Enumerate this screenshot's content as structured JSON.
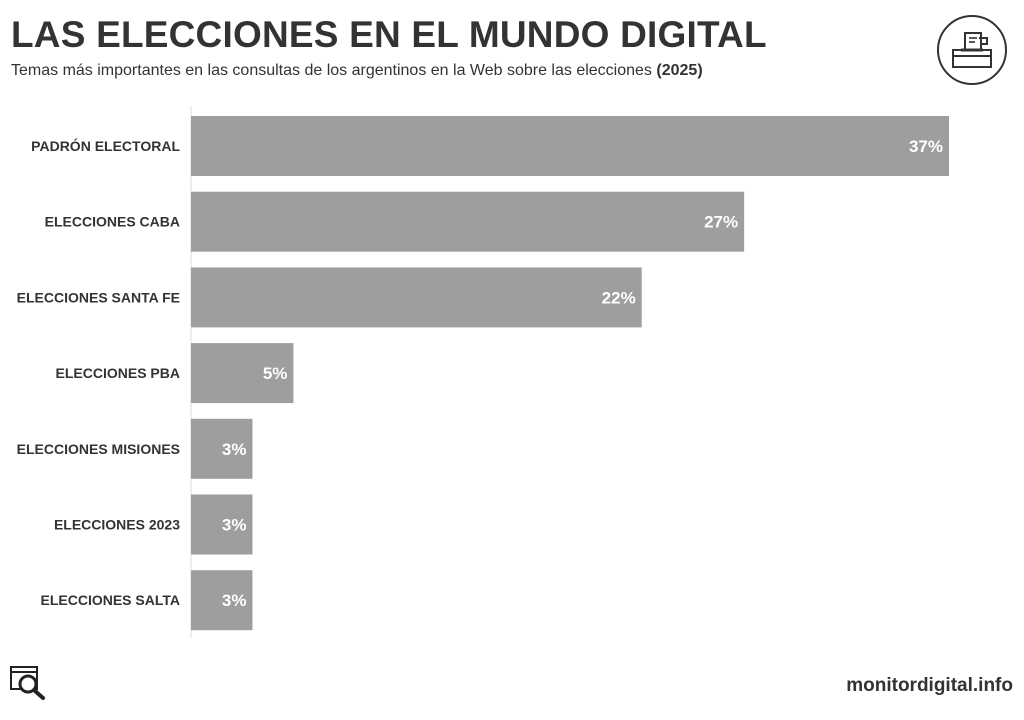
{
  "header": {
    "title": "LAS ELECCIONES EN EL MUNDO DIGITAL",
    "subtitle": "Temas más importantes en las consultas de los argentinos en la Web sobre las elecciones",
    "subtitle_year": "(2025)",
    "badge_icon": "ballot-box-icon"
  },
  "footer": {
    "icon": "search-magnifier-icon",
    "site": "monitordigital.info"
  },
  "colors": {
    "bar": "#9e9e9e",
    "text": "#333333",
    "value_text": "#ffffff"
  },
  "chart_data": {
    "type": "bar",
    "orientation": "horizontal",
    "categories": [
      "PADRÓN ELECTORAL",
      "ELECCIONES CABA",
      "ELECCIONES SANTA FE",
      "ELECCIONES PBA",
      "ELECCIONES MISIONES",
      "ELECCIONES 2023",
      "ELECCIONES SALTA"
    ],
    "values": [
      37,
      27,
      22,
      5,
      3,
      3,
      3
    ],
    "value_labels": [
      "37%",
      "27%",
      "22%",
      "5%",
      "3%",
      "3%",
      "3%"
    ],
    "xlim": [
      0,
      37
    ],
    "grid": false,
    "legend": "none"
  }
}
